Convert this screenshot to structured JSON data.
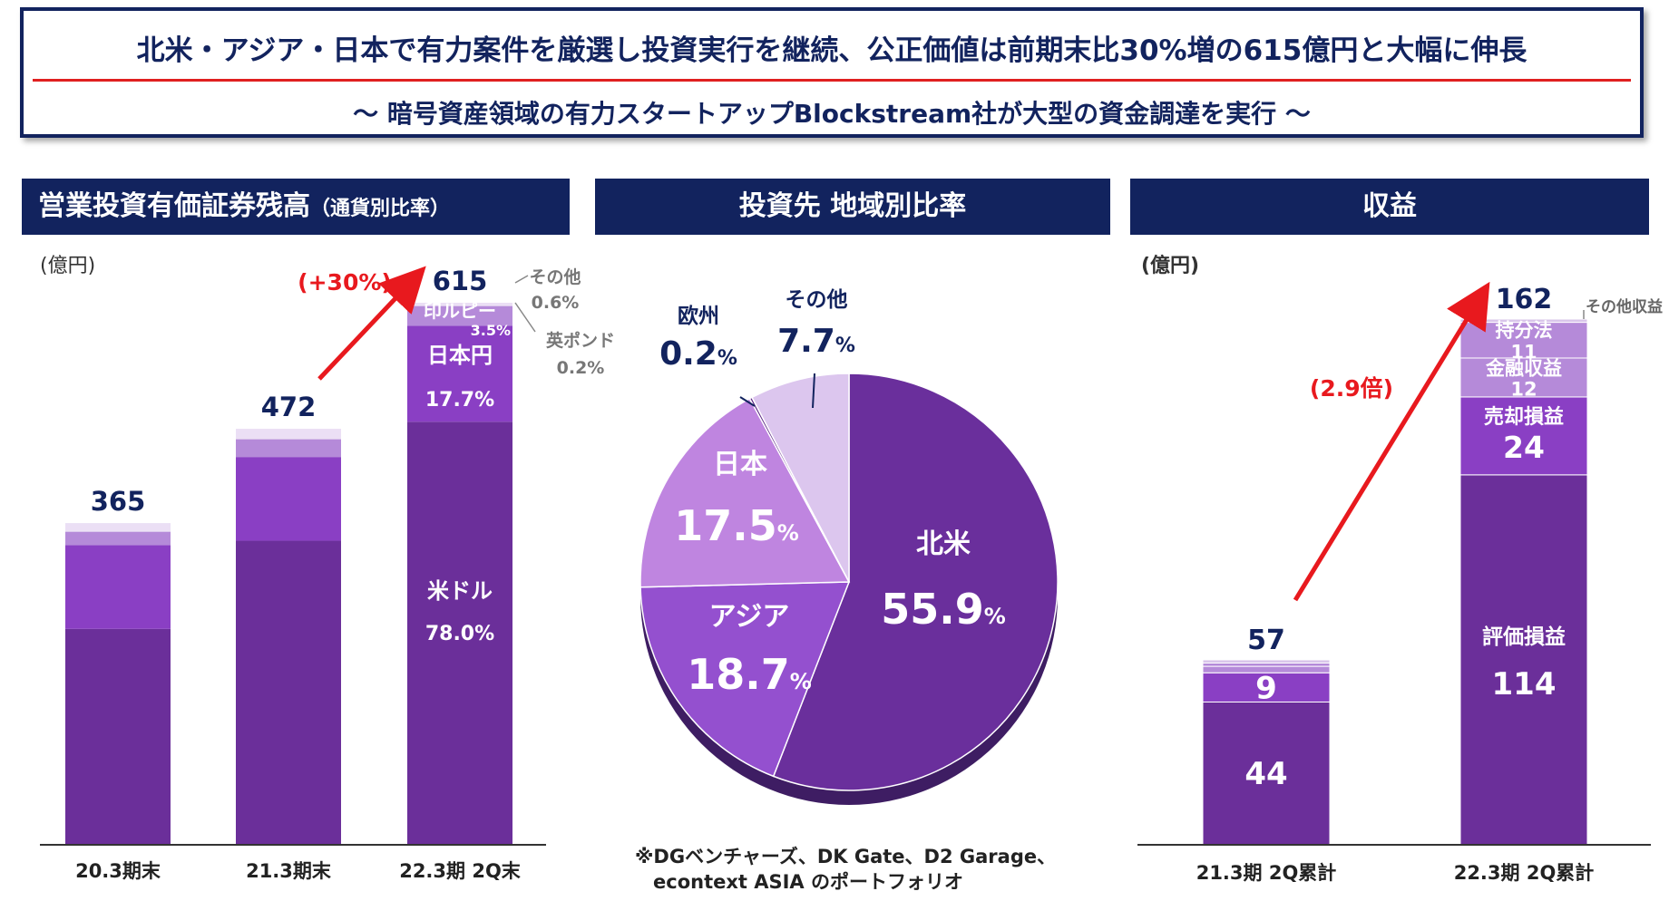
{
  "banner": {
    "title": "北米・アジア・日本で有力案件を厳選し投資実行を継続、公正価値は前期末比30%増の615億円と大幅に伸長",
    "subtitle": "～ 暗号資産領域の有力スタートアップBlockstream社が大型の資金調達を実行 ～"
  },
  "panels": {
    "left_title": "営業投資有価証券残高",
    "left_title_note": "（通貨別比率）",
    "middle_title": "投資先 地域別比率",
    "right_title": "収益"
  },
  "colors": {
    "navy": "#12235e",
    "dark_purple": "#6b2f9a",
    "mid_purple": "#8a3fc4",
    "light_purple": "#b58ad9",
    "pale_purple": "#d9c5ea",
    "red": "#e8191e"
  },
  "chart_data": [
    {
      "type": "bar",
      "stacked": true,
      "unit_label": "(億円)",
      "categories": [
        "20.3期末",
        "21.3期末",
        "22.3期 2Q末"
      ],
      "totals": [
        "365",
        "472",
        "615"
      ],
      "series": [
        {
          "name": "米ドル",
          "values": [
            245,
            345,
            480
          ],
          "share": "78.0%"
        },
        {
          "name": "日本円",
          "values": [
            95,
            95,
            109
          ],
          "share": "17.7%"
        },
        {
          "name": "印ルピー",
          "values": [
            15,
            20,
            22
          ],
          "share": "3.5%"
        },
        {
          "name": "英ポンド",
          "values": [
            1,
            1,
            1
          ],
          "share": "0.2%"
        },
        {
          "name": "その他",
          "values": [
            9,
            11,
            3
          ],
          "share": "0.6%"
        }
      ],
      "growth_label": "(+30%)",
      "ylim": [
        0,
        615
      ]
    },
    {
      "type": "pie",
      "slices": [
        {
          "name": "北米",
          "value": 55.9
        },
        {
          "name": "アジア",
          "value": 18.7
        },
        {
          "name": "日本",
          "value": 17.5
        },
        {
          "name": "欧州",
          "value": 0.2
        },
        {
          "name": "その他",
          "value": 7.7
        }
      ],
      "percent_sign": "%",
      "footnote_line1": "※DGベンチャーズ、DK Gate、D2 Garage、",
      "footnote_line2": "econtext ASIA のポートフォリオ"
    },
    {
      "type": "bar",
      "stacked": true,
      "unit_label": "(億円)",
      "categories": [
        "21.3期 2Q累計",
        "22.3期 2Q累計"
      ],
      "totals": [
        "57",
        "162"
      ],
      "series": [
        {
          "name": "評価損益",
          "values": [
            44,
            114
          ]
        },
        {
          "name": "売却損益",
          "values": [
            9,
            24
          ]
        },
        {
          "name": "金融収益",
          "values": [
            2,
            12
          ]
        },
        {
          "name": "持分法",
          "values": [
            1,
            11
          ]
        },
        {
          "name": "その他収益",
          "values": [
            1,
            1
          ]
        }
      ],
      "growth_label": "(2.9倍)",
      "ylim": [
        0,
        162
      ]
    }
  ]
}
